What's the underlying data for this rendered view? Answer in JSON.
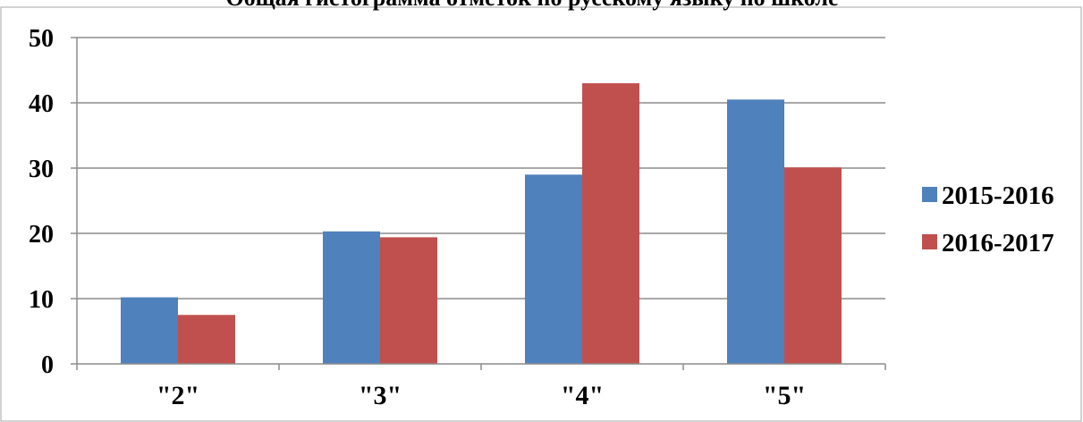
{
  "chart_data": {
    "type": "bar",
    "title": "Общая гистограмма отметок по русскому языку по школе",
    "categories": [
      "\"2\"",
      "\"3\"",
      "\"4\"",
      "\"5\""
    ],
    "series": [
      {
        "name": "2015-2016",
        "values": [
          10.2,
          20.3,
          29.0,
          40.5
        ],
        "color": "#4F81BD"
      },
      {
        "name": "2016-2017",
        "values": [
          7.5,
          19.4,
          43.0,
          30.1
        ],
        "color": "#C0504D"
      }
    ],
    "ylim": [
      0,
      50
    ],
    "yticks": [
      0,
      10,
      20,
      30,
      40,
      50
    ],
    "grid": true,
    "legend_position": "right"
  }
}
